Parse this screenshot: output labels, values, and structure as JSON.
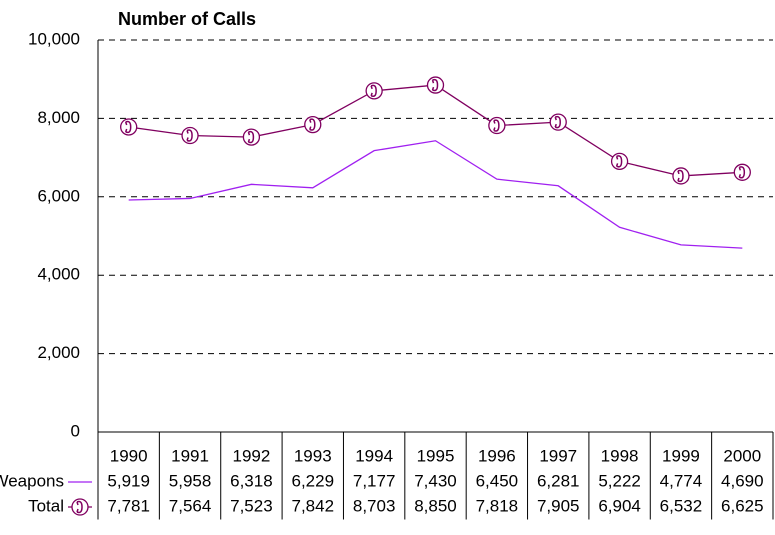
{
  "chart_data": {
    "type": "line",
    "title": "Number of Calls",
    "categories": [
      "1990",
      "1991",
      "1992",
      "1993",
      "1994",
      "1995",
      "1996",
      "1997",
      "1998",
      "1999",
      "2000"
    ],
    "series": [
      {
        "name": "Weapons",
        "color": "#a020f0",
        "marker": "none",
        "values": [
          5919,
          5958,
          6318,
          6229,
          7177,
          7430,
          6450,
          6281,
          5222,
          4774,
          4690
        ],
        "value_labels": [
          "5,919",
          "5,958",
          "6,318",
          "6,229",
          "7,177",
          "7,430",
          "6,450",
          "6,281",
          "5,222",
          "4,774",
          "4,690"
        ]
      },
      {
        "name": "Total",
        "color": "#800060",
        "marker": "phone",
        "values": [
          7781,
          7564,
          7523,
          7842,
          8703,
          8850,
          7818,
          7905,
          6904,
          6532,
          6625
        ],
        "value_labels": [
          "7,781",
          "7,564",
          "7,523",
          "7,842",
          "8,703",
          "8,850",
          "7,818",
          "7,905",
          "6,904",
          "6,532",
          "6,625"
        ]
      }
    ],
    "ylim": [
      0,
      10000
    ],
    "yticks": [
      0,
      {
        "value": 2000,
        "label": "2,000"
      },
      {
        "value": 4000,
        "label": "4,000"
      },
      {
        "value": 6000,
        "label": "6,000"
      },
      {
        "value": 8000,
        "label": "8,000"
      },
      {
        "value": 10000,
        "label": "10,000"
      }
    ],
    "grid": true
  }
}
